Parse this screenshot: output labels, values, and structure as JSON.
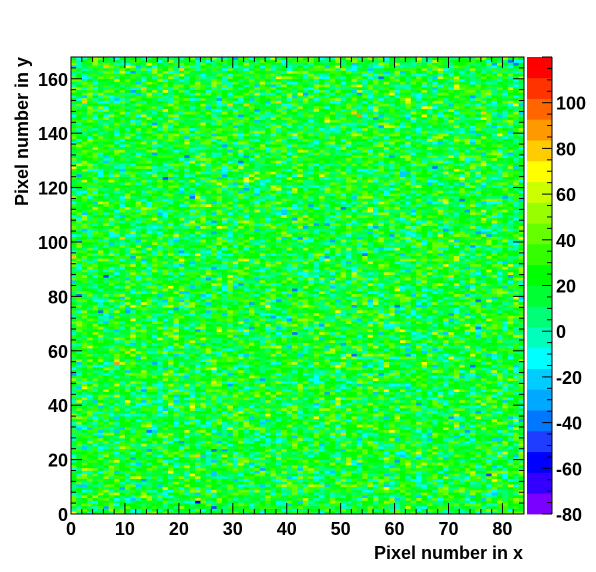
{
  "chart_data": {
    "type": "heatmap",
    "title": "",
    "xlabel": "Pixel number in x",
    "ylabel": "Pixel number in y",
    "xlim": [
      0,
      84
    ],
    "ylim": [
      0,
      168
    ],
    "x_ticks": [
      0,
      10,
      20,
      30,
      40,
      50,
      60,
      70,
      80
    ],
    "y_ticks": [
      0,
      20,
      40,
      60,
      80,
      100,
      120,
      140,
      160
    ],
    "nx": 84,
    "ny": 168,
    "value_mean": 20,
    "value_spread": 18,
    "colorbar": {
      "min": -80,
      "max": 120,
      "ticks": [
        -80,
        -60,
        -40,
        -20,
        0,
        20,
        40,
        60,
        80,
        100
      ],
      "colors": [
        "#7a00ff",
        "#3300ff",
        "#0000ff",
        "#1f3dff",
        "#0077ff",
        "#00a8ff",
        "#00ccff",
        "#00ffff",
        "#00ffbb",
        "#00ff77",
        "#00ff33",
        "#00ff00",
        "#33ff00",
        "#66ff00",
        "#99ff00",
        "#ccff00",
        "#ffff00",
        "#ffcc00",
        "#ff9900",
        "#ff6600",
        "#ff3300",
        "#ff0000"
      ]
    }
  }
}
